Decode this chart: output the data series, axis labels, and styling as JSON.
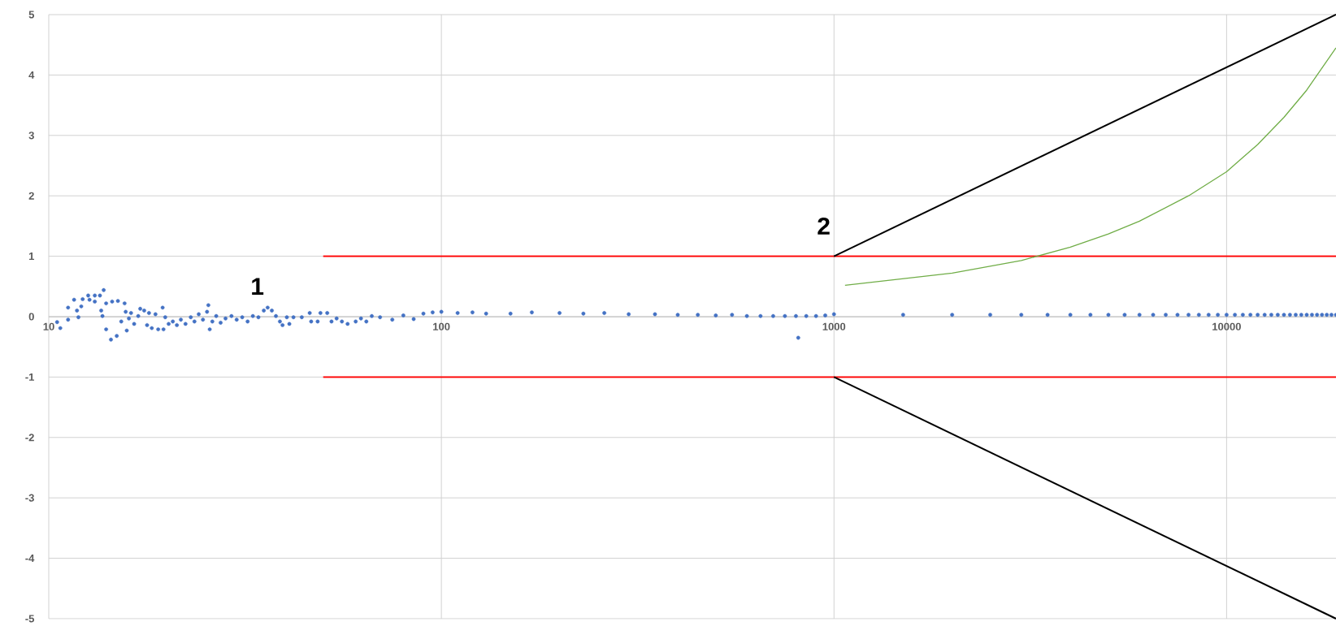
{
  "chart_data": {
    "type": "scatter",
    "log": "x",
    "grid": true,
    "xlim": [
      10,
      19000
    ],
    "ylim": [
      -5,
      5
    ],
    "xticks": [
      10,
      100,
      1000,
      10000
    ],
    "yticks": [
      -5,
      -4,
      -3,
      -2,
      -1,
      0,
      1,
      2,
      3,
      4,
      5
    ],
    "annotations": [
      "1",
      "2"
    ],
    "series": [
      {
        "color": "#4472c4",
        "marker": "circle",
        "x": [
          10.5,
          10.7,
          11.2,
          11.2,
          11.6,
          11.8,
          11.9,
          12.1,
          12.2,
          12.6,
          12.7,
          13.1,
          13.1,
          13.5,
          13.6,
          13.7,
          13.8,
          14.0,
          14.0,
          14.4,
          14.5,
          14.9,
          15.0,
          15.3,
          15.6,
          15.7,
          15.8,
          16.0,
          16.2,
          16.5,
          16.9,
          17.1,
          17.5,
          17.8,
          18.0,
          18.3,
          18.7,
          19.0,
          19.5,
          19.6,
          19.8,
          20.2,
          20.7,
          21.2,
          21.7,
          22.3,
          23.0,
          23.5,
          24.1,
          24.7,
          25.3,
          25.5,
          25.7,
          26.1,
          26.7,
          27.4,
          28.2,
          29.2,
          30.1,
          31.1,
          32.1,
          33.1,
          34.2,
          35.3,
          36.1,
          37.0,
          37.9,
          38.8,
          39.4,
          40.4,
          41.0,
          42.0,
          44.1,
          46.2,
          46.6,
          48.4,
          49.2,
          51.2,
          52.5,
          54.1,
          55.8,
          57.7,
          60.5,
          62.4,
          64.4,
          66.5,
          69.8,
          75,
          80,
          85,
          90,
          95,
          100,
          110,
          120,
          130,
          150,
          170,
          200,
          230,
          260,
          300,
          350,
          400,
          450,
          500,
          550,
          600,
          650,
          700,
          750,
          800,
          811,
          850,
          900,
          950,
          1000,
          1500,
          2000,
          2500,
          3000,
          3500,
          4000,
          4500,
          5000,
          5500,
          6000,
          6500,
          7000,
          7500,
          8000,
          8500,
          9000,
          9500,
          10000,
          10500,
          11000,
          11500,
          12000,
          12500,
          13000,
          13500,
          14000,
          14500,
          15000,
          15500,
          16000,
          16500,
          17000,
          17500,
          18000,
          18500,
          19000
        ],
        "values": [
          -0.09,
          -0.19,
          -0.05,
          0.15,
          0.28,
          0.1,
          -0.01,
          0.17,
          0.29,
          0.35,
          0.28,
          0.35,
          0.25,
          0.35,
          0.1,
          0.01,
          0.44,
          0.22,
          -0.21,
          -0.38,
          0.25,
          -0.32,
          0.26,
          -0.08,
          0.22,
          0.08,
          -0.23,
          -0.03,
          0.06,
          -0.12,
          0.01,
          0.13,
          0.1,
          -0.14,
          0.06,
          -0.19,
          0.04,
          -0.21,
          0.15,
          -0.21,
          -0.01,
          -0.12,
          -0.08,
          -0.14,
          -0.05,
          -0.12,
          -0.01,
          -0.08,
          0.04,
          -0.05,
          0.08,
          0.19,
          -0.21,
          -0.08,
          0.01,
          -0.1,
          -0.03,
          0.01,
          -0.05,
          -0.01,
          -0.08,
          0.01,
          -0.01,
          0.1,
          0.15,
          0.1,
          0.01,
          -0.08,
          -0.14,
          -0.01,
          -0.12,
          -0.01,
          -0.01,
          0.06,
          -0.08,
          -0.08,
          0.06,
          0.06,
          -0.08,
          -0.03,
          -0.08,
          -0.12,
          -0.08,
          -0.03,
          -0.08,
          0.01,
          -0.01,
          -0.05,
          0.02,
          -0.04,
          0.05,
          0.07,
          0.08,
          0.06,
          0.07,
          0.05,
          0.05,
          0.07,
          0.06,
          0.05,
          0.06,
          0.04,
          0.04,
          0.03,
          0.03,
          0.02,
          0.03,
          0.01,
          0.01,
          0.01,
          0.01,
          0.01,
          -0.35,
          0.01,
          0.01,
          0.02,
          0.04,
          0.03,
          0.03,
          0.03,
          0.03,
          0.03,
          0.03,
          0.03,
          0.03,
          0.03,
          0.03,
          0.03,
          0.03,
          0.03,
          0.03,
          0.03,
          0.03,
          0.03,
          0.03,
          0.03,
          0.03,
          0.03,
          0.03,
          0.03,
          0.03,
          0.03,
          0.03,
          0.03,
          0.03,
          0.03,
          0.03,
          0.03,
          0.03,
          0.03,
          0.03,
          0.03,
          0.03
        ]
      },
      {
        "type": "line",
        "color": "#ff0000",
        "x": [
          50,
          19000
        ],
        "values": [
          1,
          1
        ]
      },
      {
        "type": "line",
        "color": "#ff0000",
        "x": [
          50,
          19000
        ],
        "values": [
          -1,
          -1
        ]
      },
      {
        "type": "line",
        "color": "#000000",
        "x": [
          1000,
          19000
        ],
        "values": [
          1,
          5
        ]
      },
      {
        "type": "line",
        "color": "#000000",
        "x": [
          1000,
          19000
        ],
        "values": [
          -1,
          -5
        ]
      },
      {
        "type": "line",
        "color": "#70ad47",
        "x": [
          1067,
          2000,
          3000,
          4000,
          5000,
          6000,
          8000,
          10000,
          12000,
          14000,
          16000,
          19000
        ],
        "values": [
          0.52,
          0.72,
          0.93,
          1.15,
          1.37,
          1.58,
          2.0,
          2.4,
          2.85,
          3.3,
          3.75,
          4.45
        ]
      }
    ]
  }
}
